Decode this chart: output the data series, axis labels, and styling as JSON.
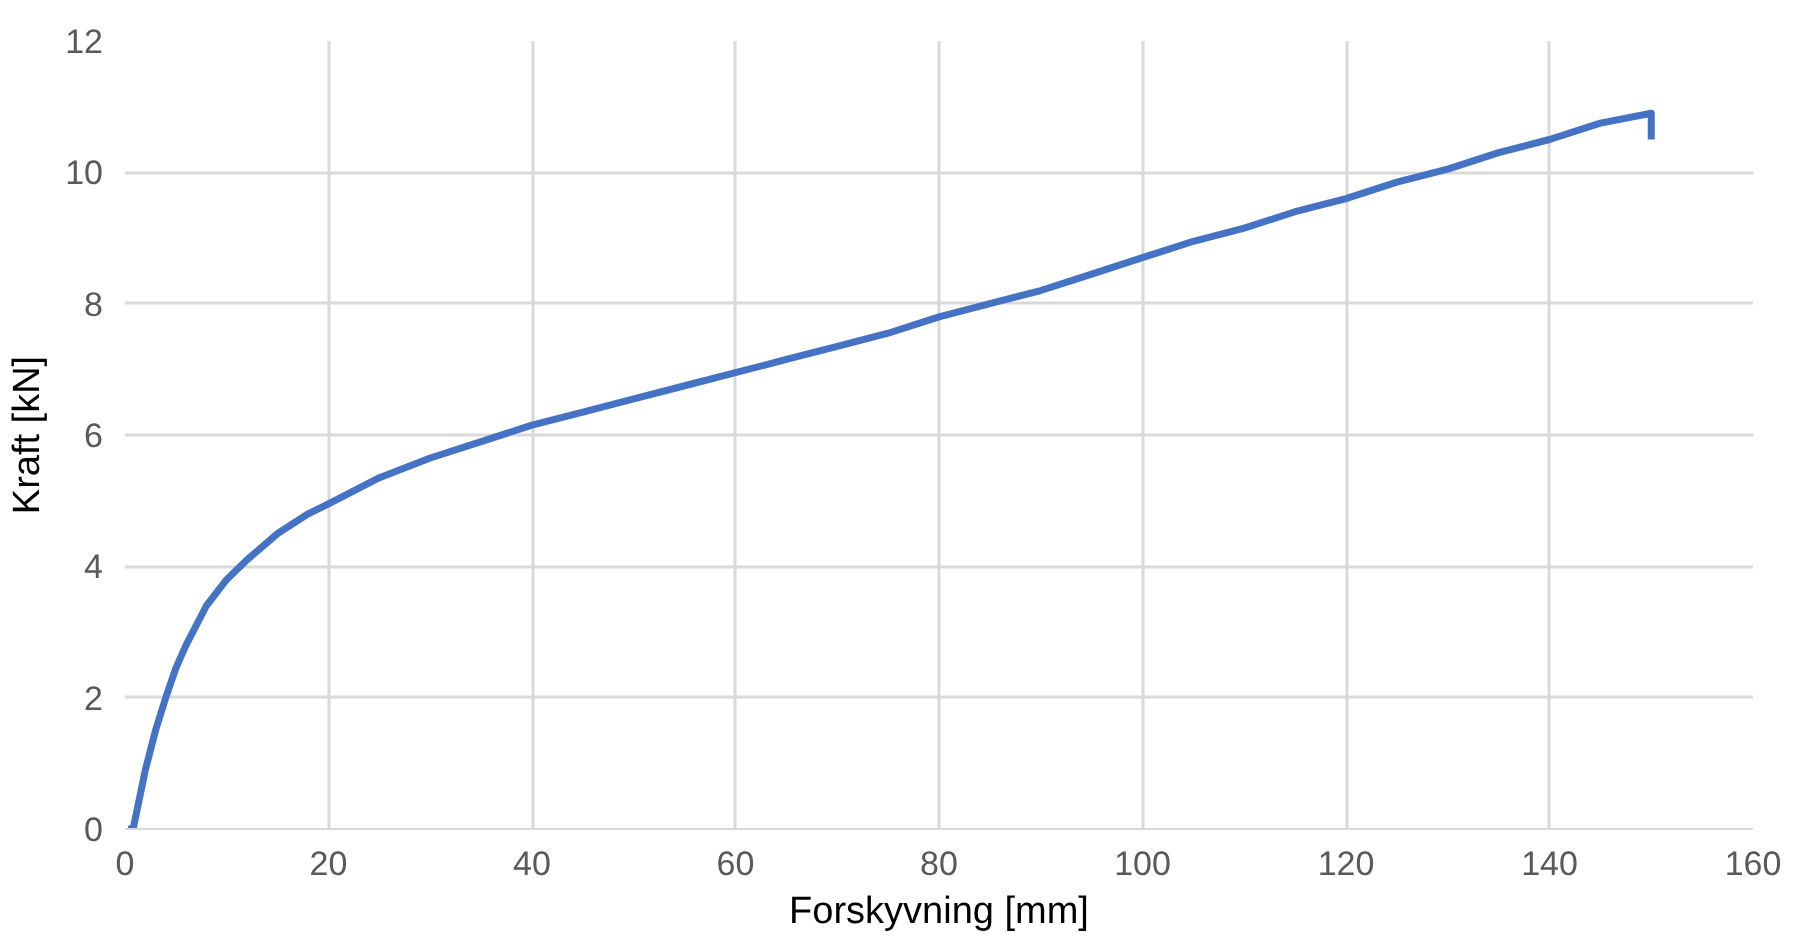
{
  "chart_data": {
    "type": "line",
    "xlabel": "Forskyvning [mm]",
    "ylabel": "Kraft [kN]",
    "xlim": [
      0,
      160
    ],
    "ylim": [
      0,
      12
    ],
    "xticks": [
      0,
      20,
      40,
      60,
      80,
      100,
      120,
      140,
      160
    ],
    "yticks": [
      0,
      2,
      4,
      6,
      8,
      10,
      12
    ],
    "grid": true,
    "marker": "none",
    "line_style": "solid",
    "series": [
      {
        "color": "#4472c4",
        "x": [
          0.3,
          0.8,
          1.2,
          2,
          3,
          4,
          5,
          6,
          8,
          10,
          12,
          15,
          18,
          20,
          25,
          30,
          35,
          40,
          45,
          50,
          55,
          60,
          65,
          70,
          75,
          80,
          85,
          90,
          95,
          100,
          105,
          110,
          115,
          120,
          125,
          130,
          135,
          140,
          145,
          150,
          150
        ],
        "values": [
          0,
          0,
          0.3,
          0.9,
          1.5,
          2,
          2.45,
          2.8,
          3.4,
          3.8,
          4.1,
          4.5,
          4.8,
          4.95,
          5.35,
          5.65,
          5.9,
          6.15,
          6.35,
          6.55,
          6.75,
          6.95,
          7.15,
          7.35,
          7.55,
          7.8,
          8.0,
          8.2,
          8.45,
          8.7,
          8.95,
          9.15,
          9.4,
          9.6,
          9.85,
          10.05,
          10.3,
          10.5,
          10.75,
          10.9,
          10.5
        ]
      }
    ]
  }
}
